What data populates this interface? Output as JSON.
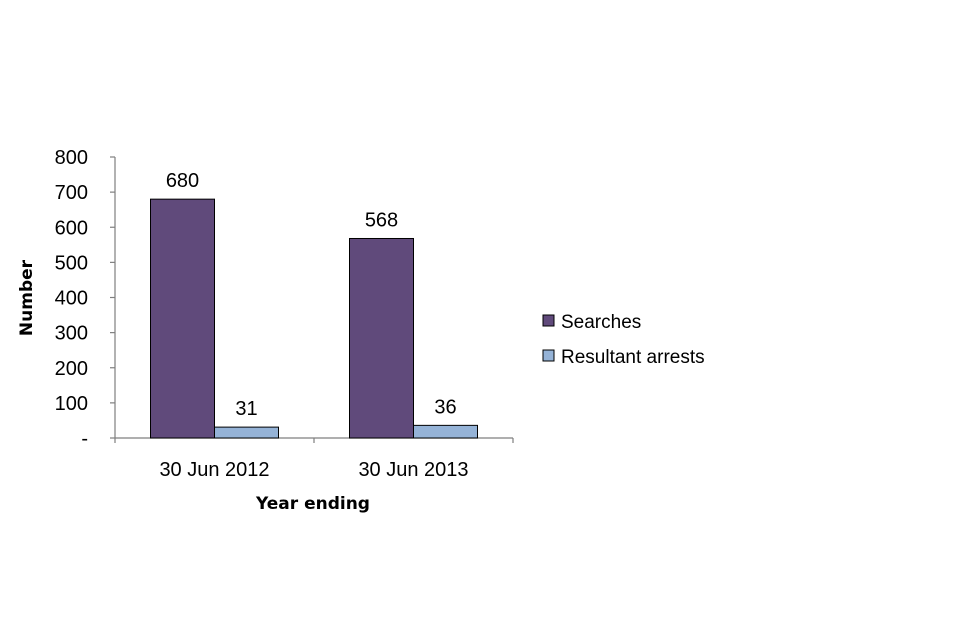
{
  "chart_data": {
    "type": "bar",
    "categories": [
      "30 Jun 2012",
      "30 Jun 2013"
    ],
    "series": [
      {
        "name": "Searches",
        "values": [
          680,
          568
        ],
        "color": "#604a7b"
      },
      {
        "name": "Resultant arrests",
        "values": [
          31,
          36
        ],
        "color": "#95b3d7"
      }
    ],
    "data_labels": [
      [
        "680",
        "568"
      ],
      [
        "31",
        "36"
      ]
    ],
    "xlabel": "Year ending",
    "ylabel": "Number",
    "ylim": [
      0,
      800
    ],
    "yticks": [
      0,
      100,
      200,
      300,
      400,
      500,
      600,
      700,
      800
    ],
    "ytick_labels": [
      "-",
      "100",
      "200",
      "300",
      "400",
      "500",
      "600",
      "700",
      "800"
    ],
    "grid": false,
    "legend_position": "right"
  }
}
